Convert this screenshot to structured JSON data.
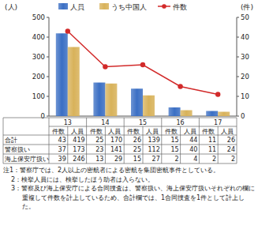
{
  "chart_data": {
    "type": "bar",
    "categories": [
      "13",
      "14",
      "15",
      "16",
      "17"
    ],
    "series": [
      {
        "name": "人員",
        "color": "#3b6fc4",
        "values": [
          419,
          170,
          139,
          44,
          26
        ]
      },
      {
        "name": "うち中国人",
        "color": "#d8b25a",
        "values": [
          350,
          165,
          105,
          30,
          22
        ]
      },
      {
        "name": "件数",
        "type": "line",
        "axis": "y2",
        "color": "#d22a2a",
        "marker": "circle",
        "values": [
          43,
          25,
          26,
          15,
          11
        ]
      }
    ],
    "ylim": [
      0,
      500
    ],
    "yticks": [
      0,
      100,
      200,
      300,
      400,
      500
    ],
    "y2lim": [
      0,
      50
    ],
    "y2ticks": [
      0,
      10,
      20,
      30,
      40,
      50
    ],
    "y_label": "(人)",
    "y2_label": "(件)",
    "legend": "top",
    "grid": false
  },
  "table": {
    "columns": [
      "13",
      "14",
      "15",
      "16",
      "17"
    ],
    "subcolumns": [
      "件数",
      "人員"
    ],
    "rows": [
      {
        "label": "合計",
        "values": [
          43,
          419,
          25,
          170,
          26,
          139,
          15,
          44,
          11,
          26
        ]
      },
      {
        "label": "警察扱い",
        "values": [
          37,
          173,
          23,
          141,
          25,
          112,
          15,
          40,
          11,
          24
        ]
      },
      {
        "label": "海上保安庁扱い",
        "values": [
          39,
          246,
          13,
          29,
          15,
          27,
          2,
          4,
          2,
          2
        ]
      }
    ]
  },
  "notes": [
    "注1：警察庁では、2人以上の密航者による密航を集団密航事件としている。",
    "2：検挙人員には、検挙したほう助者は入らない。",
    "3：警察及び海上保安庁による合同捜査は、警察扱い、海上保安庁扱いそれぞれの欄に重複して件数を計上しているため、合計欄では、1合同捜査を1件として計上した。"
  ]
}
